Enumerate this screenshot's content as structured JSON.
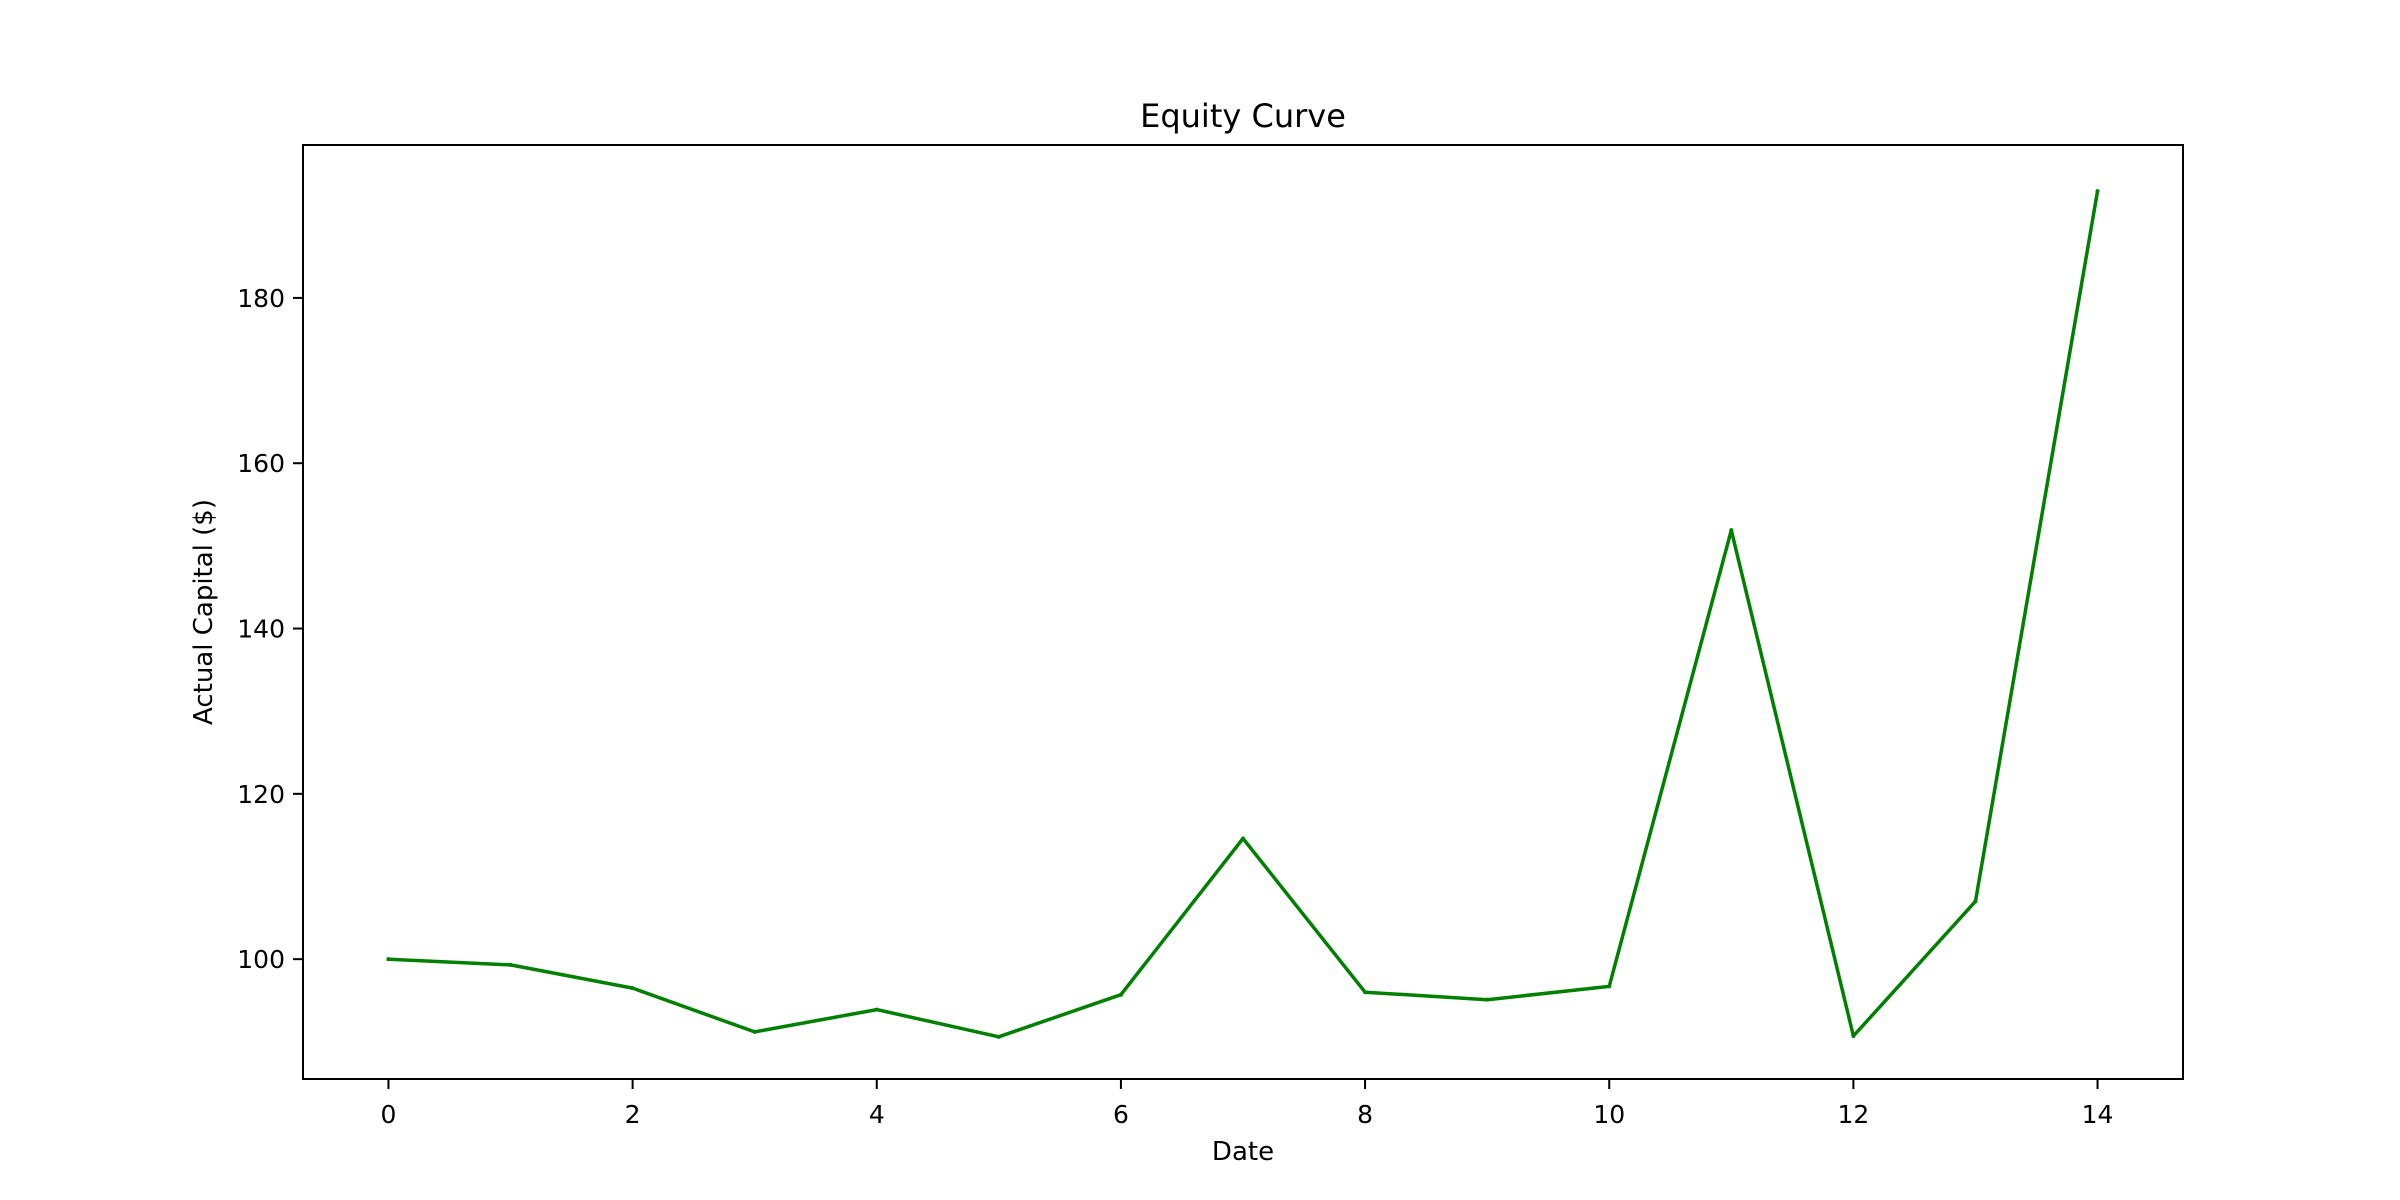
{
  "chart_data": {
    "type": "line",
    "title": "Equity Curve",
    "xlabel": "Date",
    "ylabel": "Actual Capital ($)",
    "xlim": [
      -0.7,
      14.7
    ],
    "ylim": [
      85.5,
      198.5
    ],
    "xticks": [
      0,
      2,
      4,
      6,
      8,
      10,
      12,
      14
    ],
    "yticks": [
      100,
      120,
      140,
      160,
      180
    ],
    "grid": false,
    "legend": "none",
    "series": [
      {
        "color": "#008000",
        "x": [
          0,
          1,
          2,
          3,
          4,
          5,
          6,
          7,
          8,
          9,
          10,
          11,
          12,
          13,
          14
        ],
        "y": [
          100.0,
          99.3,
          96.5,
          91.2,
          93.9,
          90.6,
          95.7,
          114.6,
          96.0,
          95.1,
          96.7,
          151.9,
          90.7,
          107.0,
          192.9
        ]
      }
    ]
  }
}
